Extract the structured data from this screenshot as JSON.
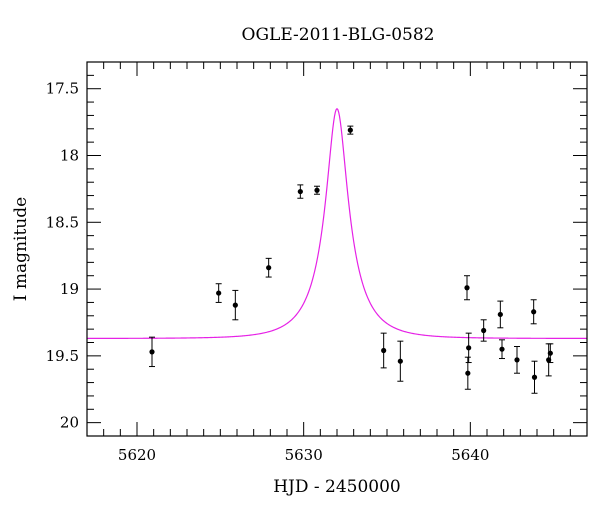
{
  "chart_data": {
    "type": "scatter",
    "title": "OGLE-2011-BLG-0582",
    "xlabel": "HJD - 2450000",
    "ylabel": "I magnitude",
    "xlim": [
      5617,
      5647
    ],
    "ylim": [
      17.3,
      20.1
    ],
    "y_inverted": true,
    "x_ticks": [
      5620,
      5630,
      5640
    ],
    "x_tick_labels": [
      "5620",
      "5630",
      "5640"
    ],
    "y_ticks": [
      17.5,
      18,
      18.5,
      19,
      19.5,
      20
    ],
    "y_tick_labels": [
      "17.5",
      "18",
      "18.5",
      "19",
      "19.5",
      "20"
    ],
    "grid": false,
    "series": [
      {
        "kind": "points_with_error_bars",
        "color": "#000000",
        "points": [
          {
            "x": 5620.9,
            "y": 19.47,
            "err": 0.11
          },
          {
            "x": 5624.9,
            "y": 19.03,
            "err": 0.07
          },
          {
            "x": 5625.9,
            "y": 19.12,
            "err": 0.11
          },
          {
            "x": 5627.9,
            "y": 18.84,
            "err": 0.07
          },
          {
            "x": 5629.8,
            "y": 18.27,
            "err": 0.05
          },
          {
            "x": 5630.8,
            "y": 18.26,
            "err": 0.03
          },
          {
            "x": 5632.8,
            "y": 17.81,
            "err": 0.03
          },
          {
            "x": 5634.8,
            "y": 19.46,
            "err": 0.13
          },
          {
            "x": 5635.8,
            "y": 19.54,
            "err": 0.15
          },
          {
            "x": 5639.8,
            "y": 18.99,
            "err": 0.09
          },
          {
            "x": 5639.9,
            "y": 19.44,
            "err": 0.11
          },
          {
            "x": 5639.85,
            "y": 19.63,
            "err": 0.12
          },
          {
            "x": 5640.8,
            "y": 19.31,
            "err": 0.08
          },
          {
            "x": 5641.8,
            "y": 19.19,
            "err": 0.1
          },
          {
            "x": 5641.9,
            "y": 19.45,
            "err": 0.07
          },
          {
            "x": 5642.8,
            "y": 19.53,
            "err": 0.1
          },
          {
            "x": 5643.8,
            "y": 19.17,
            "err": 0.09
          },
          {
            "x": 5643.85,
            "y": 19.66,
            "err": 0.12
          },
          {
            "x": 5644.7,
            "y": 19.53,
            "err": 0.12
          },
          {
            "x": 5644.8,
            "y": 19.48,
            "err": 0.07
          }
        ]
      },
      {
        "kind": "model_curve",
        "color": "#e622e6",
        "peak_time": 5632.0,
        "peak_mag": 17.65,
        "baseline_mag": 19.37,
        "einstein_time": 2.2,
        "impact_param": 0.3
      }
    ]
  }
}
